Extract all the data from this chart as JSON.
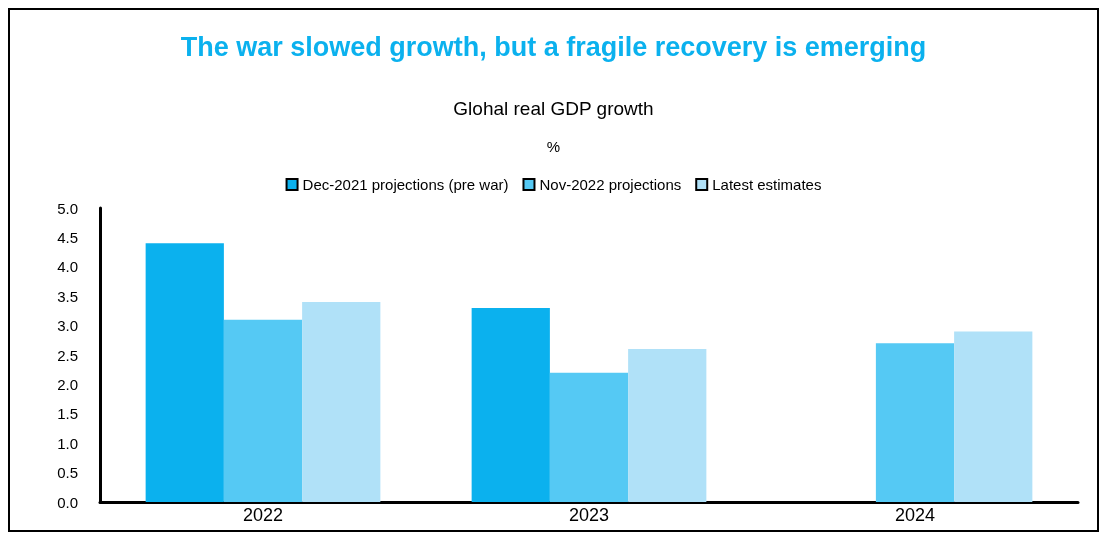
{
  "chart_data": {
    "type": "bar",
    "title": "The war slowed growth, but a fragile recovery is emerging",
    "subtitle": "Glohal real GDP growth",
    "ylabel": "%",
    "categories": [
      "2022",
      "2023",
      "2024"
    ],
    "series": [
      {
        "name": "Dec-2021 projections (pre war)",
        "color": "#0bb1ee",
        "values": [
          4.4,
          3.3,
          null
        ]
      },
      {
        "name": "Nov-2022 projections",
        "color": "#55c9f4",
        "values": [
          3.1,
          2.2,
          2.7
        ]
      },
      {
        "name": "Latest estimates",
        "color": "#b0e1f8",
        "values": [
          3.4,
          2.6,
          2.9
        ]
      }
    ],
    "ylim": [
      0,
      5
    ],
    "yticks": [
      {
        "value": 0,
        "label": "0.0"
      },
      {
        "value": 0.5,
        "label": "0.5"
      },
      {
        "value": 1,
        "label": "1.0"
      },
      {
        "value": 1.5,
        "label": "1.5"
      },
      {
        "value": 2,
        "label": "2.0"
      },
      {
        "value": 2.5,
        "label": "2.5"
      },
      {
        "value": 3,
        "label": "3.0"
      },
      {
        "value": 3.5,
        "label": "3.5"
      },
      {
        "value": 4,
        "label": "4.0"
      },
      {
        "value": 4.5,
        "label": "4.5"
      },
      {
        "value": 5,
        "label": "5.0"
      }
    ],
    "grid": false,
    "legend": "top"
  }
}
